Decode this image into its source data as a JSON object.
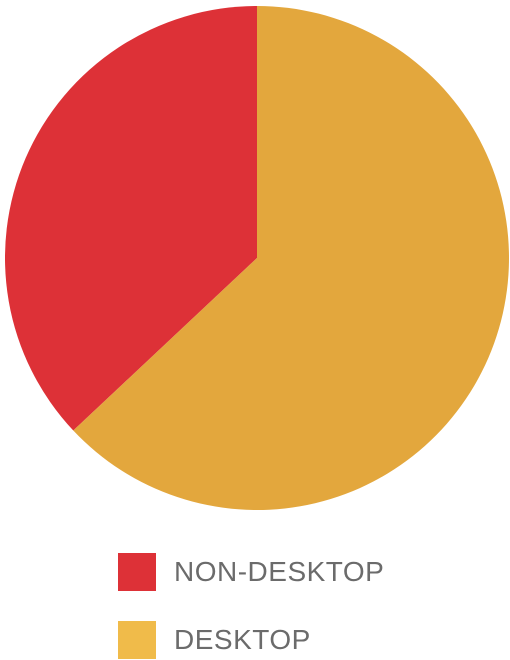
{
  "chart_data": {
    "type": "pie",
    "title": "",
    "slices": [
      {
        "label": "NON-DESKTOP",
        "value": 37,
        "color": "#dd3137"
      },
      {
        "label": "DESKTOP",
        "value": 63,
        "color": "#e3a73d"
      }
    ],
    "start_angle": "12 o'clock",
    "direction": "counter-clockwise for NON-DESKTOP",
    "legend_position": "bottom"
  },
  "legend": {
    "items": [
      {
        "label": "NON-DESKTOP",
        "color": "#dd3137"
      },
      {
        "label": "DESKTOP",
        "color": "#f0bb4a"
      }
    ]
  }
}
